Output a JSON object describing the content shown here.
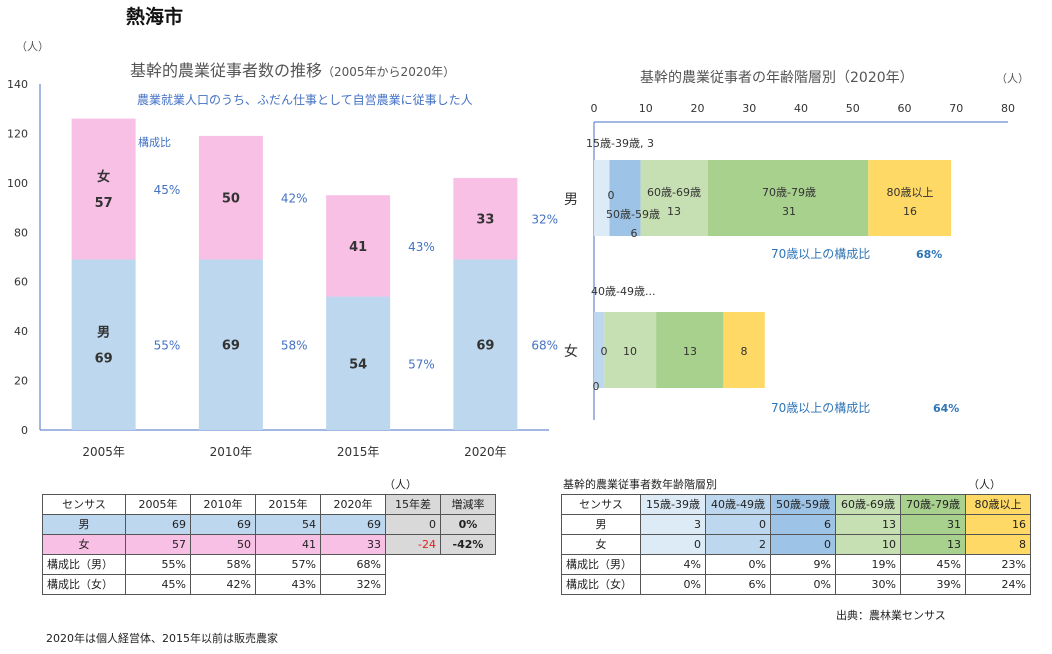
{
  "title": "熱海市",
  "chart_data": [
    {
      "type": "bar",
      "stacked": true,
      "title": "基幹的農業従事者数の推移",
      "title_suffix": "（2005年から2020年）",
      "subtitle": "農業就業人口のうち、ふだん仕事として自営農業に従事した人",
      "ylabel": "（人）",
      "ylim": [
        0,
        140
      ],
      "yticks": [
        "0",
        "20",
        "40",
        "60",
        "80",
        "100",
        "120",
        "140"
      ],
      "categories": [
        "2005年",
        "2010年",
        "2015年",
        "2020年"
      ],
      "series": [
        {
          "name": "男",
          "values": [
            69,
            69,
            54,
            69
          ],
          "labels": [
            "69",
            "69",
            "54",
            "69"
          ],
          "ratio_labels": [
            "55%",
            "58%",
            "57%",
            "68%"
          ],
          "color": "#bdd7ee"
        },
        {
          "name": "女",
          "values": [
            57,
            50,
            41,
            33
          ],
          "labels": [
            "57",
            "50",
            "41",
            "33"
          ],
          "ratio_labels": [
            "45%",
            "42%",
            "43%",
            "32%"
          ],
          "color": "#f9c0e6"
        }
      ],
      "ratio_legend": "構成比",
      "grid": false
    },
    {
      "type": "bar",
      "orientation": "horizontal",
      "stacked": true,
      "title": "基幹的農業従事者の年齢階層別（2020年）",
      "xlabel": "（人）",
      "xlim": [
        0,
        80
      ],
      "xticks": [
        "0",
        "10",
        "20",
        "30",
        "40",
        "50",
        "60",
        "70",
        "80"
      ],
      "categories": [
        "男",
        "女"
      ],
      "series": [
        {
          "name": "15歳-39歳",
          "values": [
            3,
            0
          ],
          "color": "#ddebf7"
        },
        {
          "name": "40歳-49歳",
          "values": [
            0,
            2
          ],
          "color": "#bdd7ee"
        },
        {
          "name": "50歳-59歳",
          "values": [
            6,
            0
          ],
          "color": "#9dc3e6"
        },
        {
          "name": "60歳-69歳",
          "values": [
            13,
            10
          ],
          "color": "#c6e0b4"
        },
        {
          "name": "70歳-79歳",
          "values": [
            31,
            13
          ],
          "color": "#a9d18e"
        },
        {
          "name": "80歳以上",
          "values": [
            16,
            8
          ],
          "color": "#ffd966"
        }
      ],
      "bar_labels": {
        "male": [
          {
            "text": "15歳-39歳, 3"
          },
          {
            "text": "0"
          },
          {
            "text": "50歳-59歳"
          },
          {
            "text": "6"
          },
          {
            "text": "60歳-69歳"
          },
          {
            "text": "13"
          },
          {
            "text": "70歳-79歳"
          },
          {
            "text": "31"
          },
          {
            "text": "80歳以上"
          },
          {
            "text": "16"
          }
        ],
        "female": [
          {
            "text": "40歳-49歳..."
          },
          {
            "text": "0"
          },
          {
            "text": "0"
          },
          {
            "text": "10"
          },
          {
            "text": "13"
          },
          {
            "text": "8"
          }
        ]
      },
      "ratio_notes": [
        {
          "label": "70歳以上の構成比",
          "value": "68%"
        },
        {
          "label": "70歳以上の構成比",
          "value": "64%"
        }
      ],
      "grid": false
    }
  ],
  "table1": {
    "unit": "（人）",
    "header": [
      "センサス",
      "2005年",
      "2010年",
      "2015年",
      "2020年",
      "15年差",
      "増減率"
    ],
    "rows": [
      [
        "男",
        "69",
        "69",
        "54",
        "69",
        "0",
        "0%"
      ],
      [
        "女",
        "57",
        "50",
        "41",
        "33",
        "-24",
        "-42%"
      ],
      [
        "構成比（男）",
        "55%",
        "58%",
        "57%",
        "68%"
      ],
      [
        "構成比（女）",
        "45%",
        "42%",
        "43%",
        "32%"
      ]
    ]
  },
  "table2": {
    "title": "基幹的農業従事者数年齢階層別",
    "unit": "（人）",
    "header": [
      "センサス",
      "15歳-39歳",
      "40歳-49歳",
      "50歳-59歳",
      "60歳-69歳",
      "70歳-79歳",
      "80歳以上"
    ],
    "rows": [
      [
        "男",
        "3",
        "0",
        "6",
        "13",
        "31",
        "16"
      ],
      [
        "女",
        "0",
        "2",
        "0",
        "10",
        "13",
        "8"
      ],
      [
        "構成比（男）",
        "4%",
        "0%",
        "9%",
        "19%",
        "45%",
        "23%"
      ],
      [
        "構成比（女）",
        "0%",
        "6%",
        "0%",
        "30%",
        "39%",
        "24%"
      ]
    ]
  },
  "source": "出典：農林業センサス",
  "footnote": "2020年は個人経営体、2015年以前は販売農家"
}
